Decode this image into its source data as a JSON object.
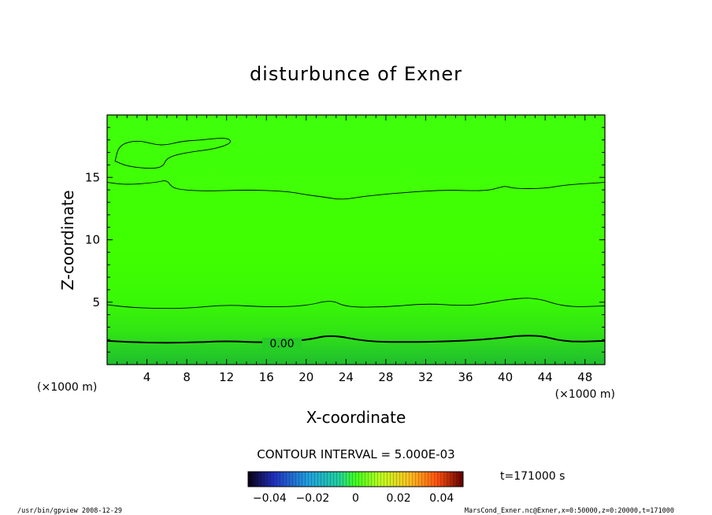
{
  "chart_data": {
    "type": "heatmap",
    "title": "disturbunce of Exner",
    "xlabel": "X-coordinate",
    "ylabel": "Z-coordinate",
    "x_unit_left": "(×1000 m)",
    "x_unit_right": "(×1000 m)",
    "xlim": [
      0,
      50
    ],
    "ylim": [
      0,
      20
    ],
    "x_ticks": [
      4,
      8,
      12,
      16,
      20,
      24,
      28,
      32,
      36,
      40,
      44,
      48
    ],
    "x_tick_labels": [
      "4",
      "8",
      "12",
      "16",
      "20",
      "24",
      "28",
      "32",
      "36",
      "40",
      "44",
      "48"
    ],
    "y_ticks": [
      5,
      10,
      15
    ],
    "y_tick_labels": [
      "5",
      "10",
      "15"
    ],
    "contour_interval_text": "CONTOUR INTERVAL = 5.000E-03",
    "time_text": "t=171000 s",
    "zero_contour_label": "0.00",
    "colorbar": {
      "range": [
        -0.05,
        0.05
      ],
      "tick_values": [
        -0.04,
        -0.02,
        0,
        0.02,
        0.04
      ],
      "tick_labels": [
        "−0.04",
        "−0.02",
        "0",
        "0.02",
        "0.04"
      ]
    },
    "contours": [
      {
        "level": "zero",
        "bold": true,
        "points": [
          [
            0,
            1.9
          ],
          [
            4,
            1.75
          ],
          [
            8,
            1.75
          ],
          [
            12,
            1.9
          ],
          [
            16,
            1.75
          ],
          [
            20,
            1.95
          ],
          [
            22.5,
            2.4
          ],
          [
            26,
            1.85
          ],
          [
            30,
            1.8
          ],
          [
            34,
            1.85
          ],
          [
            38,
            2.0
          ],
          [
            43,
            2.45
          ],
          [
            46,
            1.8
          ],
          [
            50,
            1.9
          ]
        ]
      },
      {
        "level": "lower",
        "bold": false,
        "points": [
          [
            0,
            4.8
          ],
          [
            2,
            4.6
          ],
          [
            5,
            4.5
          ],
          [
            8,
            4.5
          ],
          [
            12,
            4.8
          ],
          [
            16,
            4.6
          ],
          [
            20,
            4.7
          ],
          [
            22.5,
            5.2
          ],
          [
            24,
            4.6
          ],
          [
            28,
            4.6
          ],
          [
            32,
            4.9
          ],
          [
            36,
            4.7
          ],
          [
            38,
            4.9
          ],
          [
            40,
            5.2
          ],
          [
            43,
            5.4
          ],
          [
            46,
            4.6
          ],
          [
            50,
            4.7
          ]
        ]
      },
      {
        "level": "upper",
        "bold": false,
        "points": [
          [
            0,
            14.6
          ],
          [
            2,
            14.4
          ],
          [
            5,
            14.6
          ],
          [
            6,
            14.8
          ],
          [
            6.5,
            14.2
          ],
          [
            7.5,
            14.0
          ],
          [
            10,
            13.9
          ],
          [
            14,
            14.0
          ],
          [
            18,
            13.9
          ],
          [
            20,
            13.6
          ],
          [
            22,
            13.4
          ],
          [
            23.5,
            13.2
          ],
          [
            26,
            13.5
          ],
          [
            30,
            13.8
          ],
          [
            34,
            14.0
          ],
          [
            38,
            13.9
          ],
          [
            39.5,
            14.2
          ],
          [
            40,
            14.3
          ],
          [
            41,
            14.1
          ],
          [
            44,
            14.1
          ],
          [
            46,
            14.4
          ],
          [
            50,
            14.6
          ]
        ]
      },
      {
        "level": "top-left",
        "bold": false,
        "closed": true,
        "points": [
          [
            0.8,
            16.3
          ],
          [
            1.2,
            17.6
          ],
          [
            3,
            18
          ],
          [
            5,
            17.6
          ],
          [
            6,
            17.6
          ],
          [
            7.5,
            17.9
          ],
          [
            9.5,
            18.0
          ],
          [
            12,
            18.2
          ],
          [
            12.6,
            17.8
          ],
          [
            11,
            17.3
          ],
          [
            8,
            17.0
          ],
          [
            6,
            16.6
          ],
          [
            5.6,
            15.8
          ],
          [
            4,
            15.7
          ],
          [
            2,
            15.9
          ],
          [
            0.8,
            16.3
          ]
        ]
      }
    ]
  },
  "footer": {
    "left": "/usr/bin/gpview   2008-12-29",
    "right": "MarsCond_Exner.nc@Exner,x=0:50000,z=0:20000,t=171000"
  },
  "colors": {
    "field_bottom": "#22c22a",
    "field_mid": "#33ec0c",
    "field_top": "#3cff00"
  }
}
